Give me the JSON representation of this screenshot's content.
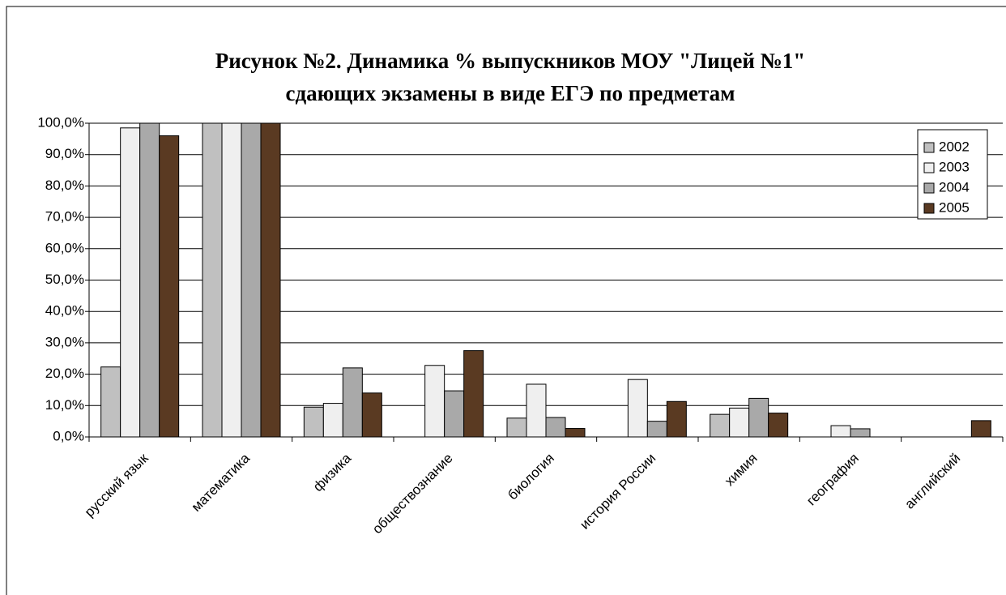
{
  "chart_data": {
    "type": "bar",
    "title": [
      "Рисунок №2.  Динамика % выпускников МОУ \"Лицей №1\"",
      "сдающих экзамены в виде ЕГЭ по предметам"
    ],
    "categories": [
      "русский язык",
      "математика",
      "физика",
      "обществознание",
      "биология",
      "история России",
      "химия",
      "география",
      "английский"
    ],
    "series": [
      {
        "name": "2002",
        "color": "#c0c0c0",
        "values": [
          22.3,
          100,
          9.5,
          0,
          6,
          0,
          7.2,
          0,
          0
        ]
      },
      {
        "name": "2003",
        "color": "#efefef",
        "values": [
          98.5,
          100,
          10.7,
          22.8,
          16.8,
          18.3,
          9.2,
          3.6,
          0
        ]
      },
      {
        "name": "2004",
        "color": "#a9a9a9",
        "values": [
          100,
          100,
          22,
          14.7,
          6.2,
          5,
          12.3,
          2.6,
          0
        ]
      },
      {
        "name": "2005",
        "color": "#5a3a22",
        "values": [
          96,
          100,
          14,
          27.5,
          2.7,
          11.3,
          7.6,
          0,
          5.2
        ]
      }
    ],
    "ylim": [
      0,
      100
    ],
    "yticks": [
      {
        "value": 0,
        "label": "0,0%"
      },
      {
        "value": 10,
        "label": "10,0%"
      },
      {
        "value": 20,
        "label": "20,0%"
      },
      {
        "value": 30,
        "label": "30,0%"
      },
      {
        "value": 40,
        "label": "40,0%"
      },
      {
        "value": 50,
        "label": "50,0%"
      },
      {
        "value": 60,
        "label": "60,0%"
      },
      {
        "value": 70,
        "label": "70,0%"
      },
      {
        "value": 80,
        "label": "80,0%"
      },
      {
        "value": 90,
        "label": "90,0%"
      },
      {
        "value": 100,
        "label": "100,0%"
      }
    ],
    "grid": true,
    "legend": "right"
  }
}
